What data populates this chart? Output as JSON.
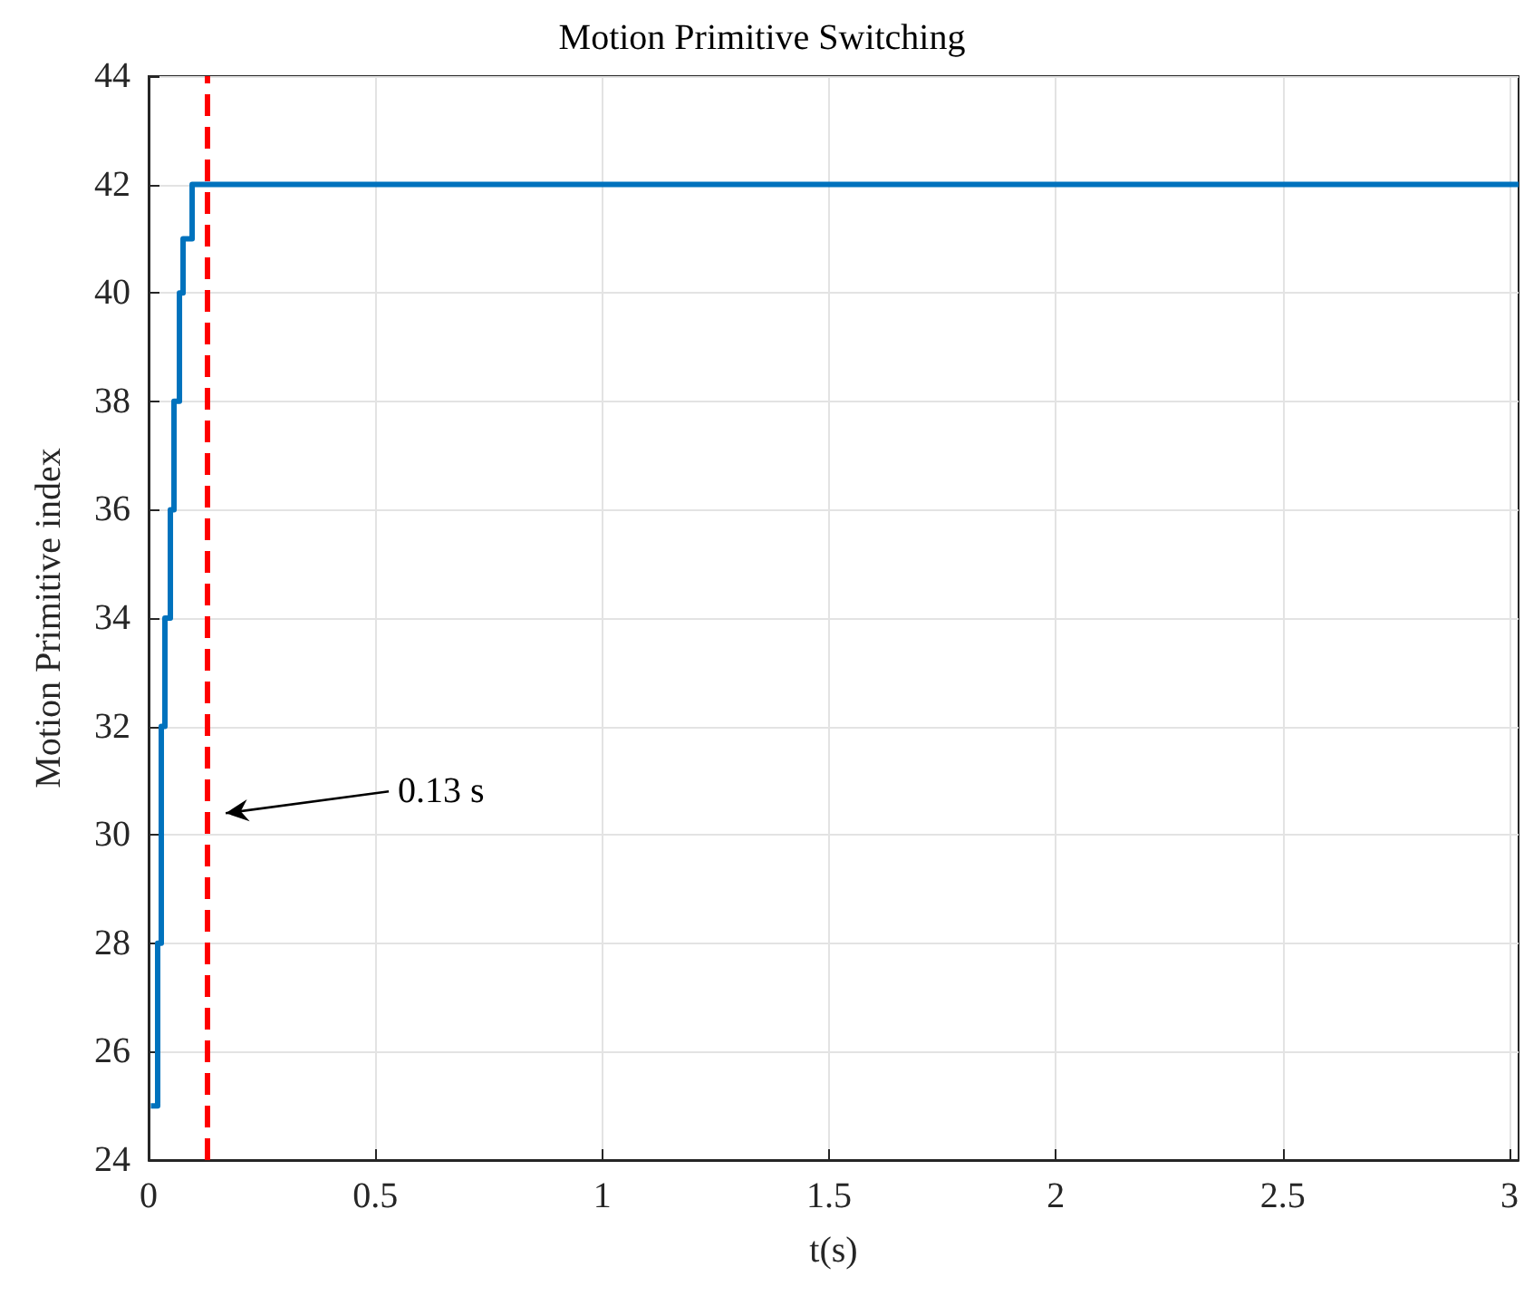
{
  "chart_data": {
    "type": "step",
    "title": "Motion Primitive Switching",
    "xlabel": "t(s)",
    "ylabel": "Motion Primitive index",
    "x": [
      0.005,
      0.02,
      0.028,
      0.036,
      0.048,
      0.056,
      0.068,
      0.076,
      0.096,
      3.02
    ],
    "series": [
      {
        "color": "#0072bd",
        "values": [
          25,
          28,
          32,
          34,
          36,
          38,
          40,
          41,
          42,
          42
        ]
      }
    ],
    "xlim": [
      0,
      3.02
    ],
    "xticks": [
      0,
      0.5,
      1,
      1.5,
      2,
      2.5,
      3
    ],
    "ylim": [
      24,
      44
    ],
    "yticks": [
      24,
      26,
      28,
      30,
      32,
      34,
      36,
      38,
      40,
      42,
      44
    ],
    "ref_lines": [
      {
        "axis": "x",
        "value": 0.13,
        "color": "#ff0000",
        "line_style": "dashed"
      }
    ],
    "annotations": [
      "0.13 s"
    ],
    "grid": true,
    "marker": "none",
    "line_style": "solid"
  }
}
